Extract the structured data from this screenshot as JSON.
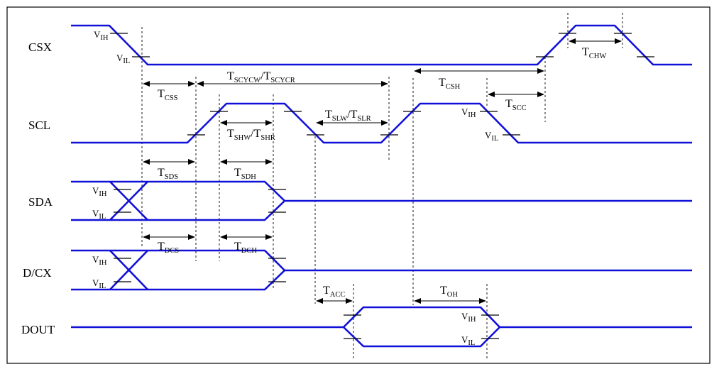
{
  "signals": [
    {
      "id": "csx",
      "label": "CSX"
    },
    {
      "id": "scl",
      "label": "SCL"
    },
    {
      "id": "sda",
      "label": "SDA"
    },
    {
      "id": "dcx",
      "label": "D/CX"
    },
    {
      "id": "dout",
      "label": "DOUT"
    }
  ],
  "levels": {
    "vih": {
      "main": "V",
      "sub": "IH"
    },
    "vil": {
      "main": "V",
      "sub": "IL"
    }
  },
  "timings": {
    "tcss": {
      "main": "T",
      "sub": "CSS"
    },
    "tscycw": {
      "main": "T",
      "sub": "SCYCW"
    },
    "slash": "/",
    "tscycr": {
      "main": "T",
      "sub": "SCYCR"
    },
    "tcsh": {
      "main": "T",
      "sub": "CSH"
    },
    "tscc": {
      "main": "T",
      "sub": "SCC"
    },
    "tchw": {
      "main": "T",
      "sub": "CHW"
    },
    "tshw": {
      "main": "T",
      "sub": "SHW"
    },
    "tshr": {
      "main": "T",
      "sub": "SHR"
    },
    "tslw": {
      "main": "T",
      "sub": "SLW"
    },
    "tslr": {
      "main": "T",
      "sub": "SLR"
    },
    "tsds": {
      "main": "T",
      "sub": "SDS"
    },
    "tsdh": {
      "main": "T",
      "sub": "SDH"
    },
    "tdcs": {
      "main": "T",
      "sub": "DCS"
    },
    "tdch": {
      "main": "T",
      "sub": "DCH"
    },
    "tacc": {
      "main": "T",
      "sub": "ACC"
    },
    "toh": {
      "main": "T",
      "sub": "OH"
    }
  },
  "colors": {
    "signal": "#1010d8",
    "frame": "#000000"
  }
}
